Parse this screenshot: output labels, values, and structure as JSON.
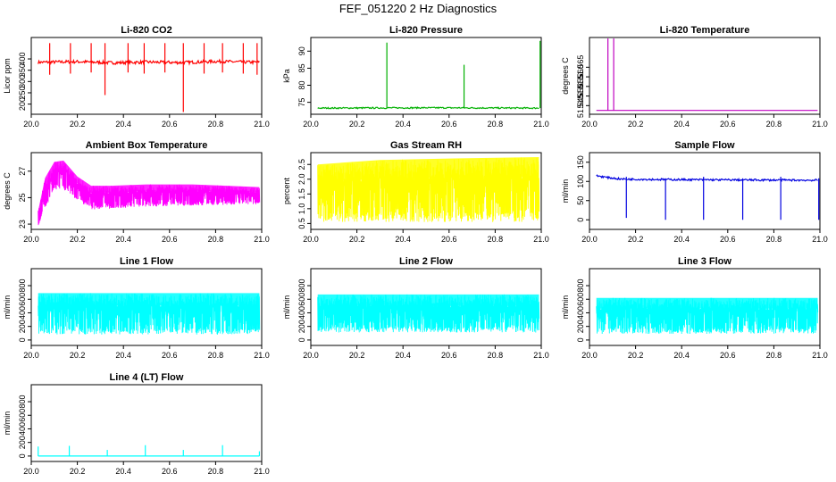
{
  "page_title": "FEF_051220  2 Hz Diagnostics",
  "chart_data": [
    {
      "id": "co2",
      "type": "line",
      "title": "Li-820 CO2",
      "ylabel": "Licor ppm",
      "color": "#ff0000",
      "xlim": [
        0,
        1
      ],
      "ylim": [
        155,
        495
      ],
      "xticks": [
        0,
        0.2,
        0.4,
        0.6,
        0.8,
        1.0
      ],
      "xtick_labels": [
        "20.0",
        "20.2",
        "20.4",
        "20.6",
        "20.8",
        "21.0"
      ],
      "yticks": [
        200,
        250,
        300,
        350,
        400
      ],
      "ytick_labels": [
        "200",
        "250",
        "300",
        "350",
        "400"
      ],
      "series": [
        {
          "name": "baseline",
          "points": [
            [
              0.03,
              385
            ],
            [
              0.2,
              388
            ],
            [
              0.35,
              383
            ],
            [
              0.5,
              386
            ],
            [
              0.65,
              384
            ],
            [
              0.8,
              389
            ],
            [
              0.99,
              385
            ]
          ],
          "band": 14
        },
        {
          "name": "spikes",
          "x": [
            0.08,
            0.17,
            0.26,
            0.32,
            0.42,
            0.49,
            0.58,
            0.66,
            0.75,
            0.83,
            0.92,
            0.98
          ],
          "up": [
            470,
            470,
            470,
            470,
            470,
            470,
            470,
            470,
            470,
            470,
            470,
            470
          ],
          "down": [
            330,
            335,
            340,
            240,
            340,
            335,
            340,
            165,
            335,
            340,
            335,
            330
          ]
        }
      ]
    },
    {
      "id": "pressure",
      "type": "line",
      "title": "Li-820 Pressure",
      "ylabel": "kPa",
      "color": "#00b000",
      "xlim": [
        0,
        1
      ],
      "ylim": [
        71.5,
        94
      ],
      "xticks": [
        0,
        0.2,
        0.4,
        0.6,
        0.8,
        1.0
      ],
      "xtick_labels": [
        "20.0",
        "20.2",
        "20.4",
        "20.6",
        "20.8",
        "21.0"
      ],
      "yticks": [
        75,
        80,
        85,
        90
      ],
      "ytick_labels": [
        "75",
        "80",
        "85",
        "90"
      ],
      "series": [
        {
          "name": "baseline",
          "points": [
            [
              0.03,
              73.3
            ],
            [
              0.5,
              73.4
            ],
            [
              0.99,
              73.3
            ]
          ],
          "band": 0.4
        },
        {
          "name": "spikes",
          "x": [
            0.33,
            0.665,
            0.995
          ],
          "up": [
            92.5,
            86,
            93
          ],
          "down": [
            73.3,
            73.3,
            73.3
          ]
        }
      ]
    },
    {
      "id": "licor_temp",
      "type": "line",
      "title": "Li-820 Temperature",
      "ylabel": "degrees C",
      "color": "#c000c0",
      "xlim": [
        0,
        1
      ],
      "ylim": [
        51.5405,
        51.5805
      ],
      "xticks": [
        0,
        0.2,
        0.4,
        0.6,
        0.8,
        1.0
      ],
      "xtick_labels": [
        "20.0",
        "20.2",
        "20.4",
        "20.6",
        "20.8",
        "21.0"
      ],
      "yticks": [
        51.545,
        51.55,
        51.555,
        51.56,
        51.565
      ],
      "ytick_labels": [
        "51.545",
        "51.550",
        "51.555",
        "51.560",
        "51.565"
      ],
      "series": [
        {
          "name": "baseline",
          "points": [
            [
              0.03,
              51.5425
            ],
            [
              0.99,
              51.5425
            ]
          ],
          "band": 0
        },
        {
          "name": "spikes",
          "x": [
            0.08,
            0.105
          ],
          "up": [
            51.58,
            51.58
          ],
          "down": [
            51.5425,
            51.5425
          ]
        }
      ]
    },
    {
      "id": "ambient_temp",
      "type": "line",
      "title": "Ambient Box Temperature",
      "ylabel": "degrees C",
      "color": "#ff00ff",
      "xlim": [
        0,
        1
      ],
      "ylim": [
        22.6,
        28.4
      ],
      "xticks": [
        0,
        0.2,
        0.4,
        0.6,
        0.8,
        1.0
      ],
      "xtick_labels": [
        "20.0",
        "20.2",
        "20.4",
        "20.6",
        "20.8",
        "21.0"
      ],
      "yticks": [
        23,
        25,
        27
      ],
      "ytick_labels": [
        "23",
        "25",
        "27"
      ],
      "series": [
        {
          "name": "upper",
          "points": [
            [
              0.03,
              24.0
            ],
            [
              0.06,
              26.5
            ],
            [
              0.1,
              27.7
            ],
            [
              0.14,
              27.8
            ],
            [
              0.2,
              26.6
            ],
            [
              0.26,
              25.9
            ],
            [
              0.35,
              25.9
            ],
            [
              0.5,
              26.0
            ],
            [
              0.7,
              26.0
            ],
            [
              0.85,
              25.9
            ],
            [
              0.99,
              25.8
            ]
          ]
        },
        {
          "name": "lower",
          "points": [
            [
              0.03,
              22.9
            ],
            [
              0.06,
              24.2
            ],
            [
              0.1,
              25.6
            ],
            [
              0.14,
              25.6
            ],
            [
              0.2,
              24.8
            ],
            [
              0.26,
              24.1
            ],
            [
              0.5,
              24.3
            ],
            [
              0.7,
              24.4
            ],
            [
              0.99,
              24.5
            ]
          ]
        }
      ]
    },
    {
      "id": "gas_rh",
      "type": "line",
      "title": "Gas Stream RH",
      "ylabel": "percent",
      "color": "#ffff00",
      "xlim": [
        0,
        1
      ],
      "ylim": [
        0.3,
        2.9
      ],
      "xticks": [
        0,
        0.2,
        0.4,
        0.6,
        0.8,
        1.0
      ],
      "xtick_labels": [
        "20.0",
        "20.2",
        "20.4",
        "20.6",
        "20.8",
        "21.0"
      ],
      "yticks": [
        0.5,
        1.0,
        1.5,
        2.0,
        2.5
      ],
      "ytick_labels": [
        "0.5",
        "1.0",
        "1.5",
        "2.0",
        "2.5"
      ],
      "series": [
        {
          "name": "upper",
          "points": [
            [
              0.03,
              2.5
            ],
            [
              0.3,
              2.65
            ],
            [
              0.6,
              2.7
            ],
            [
              0.99,
              2.75
            ]
          ]
        },
        {
          "name": "lower",
          "points": [
            [
              0.03,
              0.55
            ],
            [
              0.99,
              0.55
            ]
          ]
        }
      ]
    },
    {
      "id": "sample_flow",
      "type": "line",
      "title": "Sample Flow",
      "ylabel": "ml/min",
      "color": "#0000e0",
      "xlim": [
        0,
        1
      ],
      "ylim": [
        -25,
        175
      ],
      "xticks": [
        0,
        0.2,
        0.4,
        0.6,
        0.8,
        1.0
      ],
      "xtick_labels": [
        "20.0",
        "20.2",
        "20.4",
        "20.6",
        "20.8",
        "21.0"
      ],
      "yticks": [
        0,
        50,
        100,
        150
      ],
      "ytick_labels": [
        "0",
        "50",
        "100",
        "150"
      ],
      "series": [
        {
          "name": "baseline",
          "points": [
            [
              0.03,
              115
            ],
            [
              0.08,
              110
            ],
            [
              0.14,
              106
            ],
            [
              0.3,
              105
            ],
            [
              0.6,
              104
            ],
            [
              0.99,
              103
            ]
          ],
          "band": 5
        },
        {
          "name": "spikes",
          "x": [
            0.16,
            0.33,
            0.495,
            0.665,
            0.83,
            0.995
          ],
          "up": [
            112,
            108,
            112,
            108,
            112,
            108
          ],
          "down": [
            5,
            0,
            0,
            0,
            0,
            0
          ]
        }
      ]
    },
    {
      "id": "line1",
      "type": "line",
      "title": "Line 1 Flow",
      "ylabel": "ml/min",
      "color": "#00ffff",
      "xlim": [
        0,
        1
      ],
      "ylim": [
        -80,
        1050
      ],
      "xticks": [
        0,
        0.2,
        0.4,
        0.6,
        0.8,
        1.0
      ],
      "xtick_labels": [
        "20.0",
        "20.2",
        "20.4",
        "20.6",
        "20.8",
        "21.0"
      ],
      "yticks": [
        0,
        200,
        400,
        600,
        800
      ],
      "ytick_labels": [
        "0",
        "200",
        "400",
        "600",
        "800"
      ],
      "series": [
        {
          "name": "upper",
          "points": [
            [
              0.03,
              690
            ],
            [
              0.99,
              690
            ]
          ]
        },
        {
          "name": "lower",
          "points": [
            [
              0.03,
              80
            ],
            [
              0.99,
              80
            ]
          ]
        }
      ]
    },
    {
      "id": "line2",
      "type": "line",
      "title": "Line 2 Flow",
      "ylabel": "ml/min",
      "color": "#00ffff",
      "xlim": [
        0,
        1
      ],
      "ylim": [
        -80,
        1050
      ],
      "xticks": [
        0,
        0.2,
        0.4,
        0.6,
        0.8,
        1.0
      ],
      "xtick_labels": [
        "20.0",
        "20.2",
        "20.4",
        "20.6",
        "20.8",
        "21.0"
      ],
      "yticks": [
        0,
        200,
        400,
        600,
        800
      ],
      "ytick_labels": [
        "0",
        "200",
        "400",
        "600",
        "800"
      ],
      "series": [
        {
          "name": "upper",
          "points": [
            [
              0.03,
              670
            ],
            [
              0.99,
              670
            ]
          ]
        },
        {
          "name": "lower",
          "points": [
            [
              0.03,
              110
            ],
            [
              0.99,
              110
            ]
          ]
        }
      ]
    },
    {
      "id": "line3",
      "type": "line",
      "title": "Line 3 Flow",
      "ylabel": "ml/min",
      "color": "#00ffff",
      "xlim": [
        0,
        1
      ],
      "ylim": [
        -80,
        1050
      ],
      "xticks": [
        0,
        0.2,
        0.4,
        0.6,
        0.8,
        1.0
      ],
      "xtick_labels": [
        "20.0",
        "20.2",
        "20.4",
        "20.6",
        "20.8",
        "21.0"
      ],
      "yticks": [
        0,
        200,
        400,
        600,
        800
      ],
      "ytick_labels": [
        "0",
        "200",
        "400",
        "600",
        "800"
      ],
      "series": [
        {
          "name": "upper",
          "points": [
            [
              0.03,
              620
            ],
            [
              0.99,
              620
            ]
          ]
        },
        {
          "name": "lower",
          "points": [
            [
              0.03,
              90
            ],
            [
              0.99,
              90
            ]
          ]
        }
      ]
    },
    {
      "id": "line4",
      "type": "line",
      "title": "Line 4 (LT) Flow",
      "ylabel": "ml/min",
      "color": "#00ffff",
      "xlim": [
        0,
        1
      ],
      "ylim": [
        -80,
        1050
      ],
      "xticks": [
        0,
        0.2,
        0.4,
        0.6,
        0.8,
        1.0
      ],
      "xtick_labels": [
        "20.0",
        "20.2",
        "20.4",
        "20.6",
        "20.8",
        "21.0"
      ],
      "yticks": [
        0,
        200,
        400,
        600,
        800
      ],
      "ytick_labels": [
        "0",
        "200",
        "400",
        "600",
        "800"
      ],
      "series": [
        {
          "name": "baseline",
          "points": [
            [
              0.03,
              0
            ],
            [
              0.99,
              0
            ]
          ],
          "band": 0
        },
        {
          "name": "spikes",
          "x": [
            0.03,
            0.165,
            0.33,
            0.495,
            0.66,
            0.83,
            0.99
          ],
          "up": [
            140,
            150,
            90,
            160,
            90,
            160,
            70
          ],
          "down": [
            0,
            0,
            0,
            0,
            0,
            0,
            0
          ]
        }
      ]
    }
  ]
}
